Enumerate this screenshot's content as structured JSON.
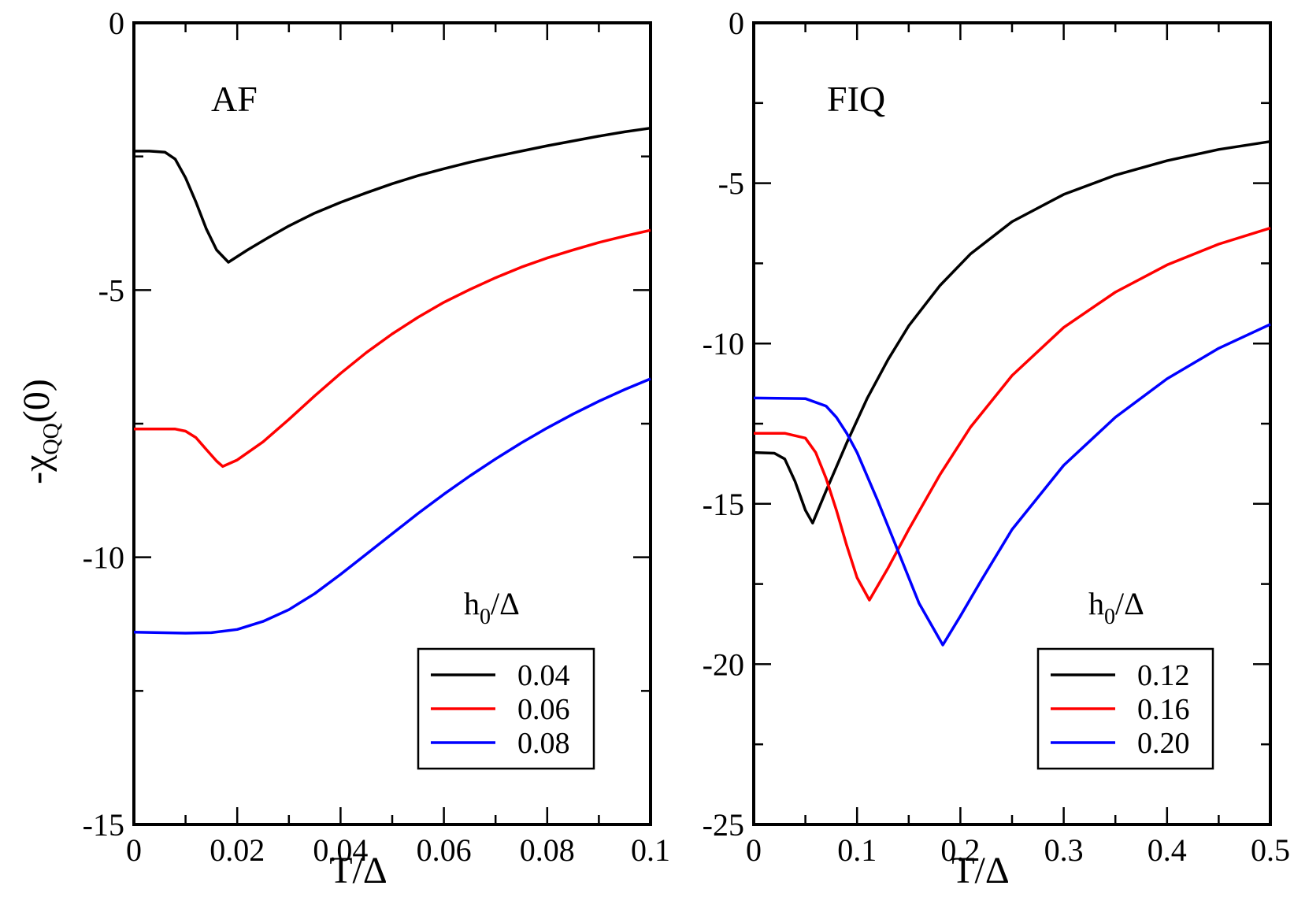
{
  "chart_data": [
    {
      "type": "line",
      "panel_label": "AF",
      "xlabel": "T/Δ",
      "ylabel": "-χ",
      "ylabel_sub": "QQ",
      "ylabel_tail": "(0)",
      "xlim": [
        0,
        0.1
      ],
      "ylim": [
        -15,
        0
      ],
      "xticks": [
        0,
        0.02,
        0.04,
        0.06,
        0.08,
        0.1
      ],
      "xtick_labels": [
        "0",
        "0.02",
        "0.04",
        "0.06",
        "0.08",
        "0.1"
      ],
      "yticks": [
        0,
        -5,
        -10,
        -15
      ],
      "ytick_labels": [
        "0",
        "-5",
        "-10",
        "-15"
      ],
      "legend_title": "h",
      "legend_title_sub": "0",
      "legend_title_tail": "/Δ",
      "legend_position": "bottom-right",
      "series": [
        {
          "name": "0.04",
          "color": "#000000",
          "x": [
            0,
            0.003,
            0.006,
            0.008,
            0.01,
            0.012,
            0.014,
            0.016,
            0.0183,
            0.022,
            0.026,
            0.03,
            0.035,
            0.04,
            0.045,
            0.05,
            0.055,
            0.06,
            0.065,
            0.07,
            0.075,
            0.08,
            0.085,
            0.09,
            0.095,
            0.1
          ],
          "y": [
            -2.4,
            -2.4,
            -2.42,
            -2.55,
            -2.9,
            -3.35,
            -3.85,
            -4.25,
            -4.48,
            -4.25,
            -4.02,
            -3.8,
            -3.56,
            -3.36,
            -3.18,
            -3.01,
            -2.86,
            -2.73,
            -2.61,
            -2.5,
            -2.4,
            -2.3,
            -2.21,
            -2.12,
            -2.04,
            -1.97
          ]
        },
        {
          "name": "0.06",
          "color": "#ff0000",
          "x": [
            0,
            0.004,
            0.008,
            0.01,
            0.012,
            0.014,
            0.016,
            0.0172,
            0.02,
            0.025,
            0.03,
            0.035,
            0.04,
            0.045,
            0.05,
            0.055,
            0.06,
            0.065,
            0.07,
            0.075,
            0.08,
            0.085,
            0.09,
            0.095,
            0.1
          ],
          "y": [
            -7.6,
            -7.6,
            -7.6,
            -7.64,
            -7.76,
            -7.98,
            -8.2,
            -8.3,
            -8.18,
            -7.84,
            -7.42,
            -6.98,
            -6.56,
            -6.17,
            -5.82,
            -5.51,
            -5.23,
            -4.99,
            -4.77,
            -4.57,
            -4.4,
            -4.25,
            -4.11,
            -3.99,
            -3.88
          ]
        },
        {
          "name": "0.08",
          "color": "#0000ff",
          "x": [
            0,
            0.005,
            0.01,
            0.015,
            0.02,
            0.025,
            0.03,
            0.035,
            0.04,
            0.045,
            0.05,
            0.055,
            0.06,
            0.065,
            0.07,
            0.075,
            0.08,
            0.085,
            0.09,
            0.095,
            0.1
          ],
          "y": [
            -11.4,
            -11.41,
            -11.42,
            -11.41,
            -11.35,
            -11.2,
            -10.98,
            -10.68,
            -10.32,
            -9.94,
            -9.56,
            -9.18,
            -8.82,
            -8.48,
            -8.16,
            -7.86,
            -7.58,
            -7.32,
            -7.08,
            -6.86,
            -6.66
          ]
        }
      ]
    },
    {
      "type": "line",
      "panel_label": "FIQ",
      "xlabel": "T/Δ",
      "xlim": [
        0,
        0.5
      ],
      "ylim": [
        -25,
        0
      ],
      "xticks": [
        0,
        0.1,
        0.2,
        0.3,
        0.4,
        0.5
      ],
      "xtick_labels": [
        "0",
        "0.1",
        "0.2",
        "0.3",
        "0.4",
        "0.5"
      ],
      "yticks": [
        0,
        -5,
        -10,
        -15,
        -20,
        -25
      ],
      "ytick_labels": [
        "0",
        "-5",
        "-10",
        "-15",
        "-20",
        "-25"
      ],
      "legend_title": "h",
      "legend_title_sub": "0",
      "legend_title_tail": "/Δ",
      "legend_position": "bottom-right",
      "series": [
        {
          "name": "0.12",
          "color": "#000000",
          "x": [
            0,
            0.02,
            0.03,
            0.04,
            0.05,
            0.057,
            0.07,
            0.09,
            0.11,
            0.13,
            0.15,
            0.18,
            0.21,
            0.25,
            0.3,
            0.35,
            0.4,
            0.45,
            0.5
          ],
          "y": [
            -13.4,
            -13.42,
            -13.6,
            -14.3,
            -15.2,
            -15.6,
            -14.6,
            -13.1,
            -11.7,
            -10.5,
            -9.45,
            -8.2,
            -7.2,
            -6.2,
            -5.35,
            -4.75,
            -4.3,
            -3.95,
            -3.7
          ]
        },
        {
          "name": "0.16",
          "color": "#ff0000",
          "x": [
            0,
            0.03,
            0.05,
            0.06,
            0.07,
            0.08,
            0.09,
            0.1,
            0.112,
            0.13,
            0.15,
            0.18,
            0.21,
            0.25,
            0.3,
            0.35,
            0.4,
            0.45,
            0.5
          ],
          "y": [
            -12.8,
            -12.8,
            -12.95,
            -13.4,
            -14.2,
            -15.2,
            -16.3,
            -17.3,
            -18.0,
            -17.0,
            -15.8,
            -14.1,
            -12.6,
            -11.0,
            -9.5,
            -8.4,
            -7.55,
            -6.9,
            -6.4
          ]
        },
        {
          "name": "0.20",
          "color": "#0000ff",
          "x": [
            0,
            0.05,
            0.07,
            0.08,
            0.09,
            0.1,
            0.12,
            0.14,
            0.16,
            0.183,
            0.2,
            0.22,
            0.25,
            0.3,
            0.35,
            0.4,
            0.45,
            0.5
          ],
          "y": [
            -11.7,
            -11.72,
            -11.95,
            -12.3,
            -12.8,
            -13.4,
            -14.9,
            -16.5,
            -18.1,
            -19.4,
            -18.5,
            -17.4,
            -15.8,
            -13.8,
            -12.3,
            -11.1,
            -10.15,
            -9.4
          ]
        }
      ]
    }
  ]
}
